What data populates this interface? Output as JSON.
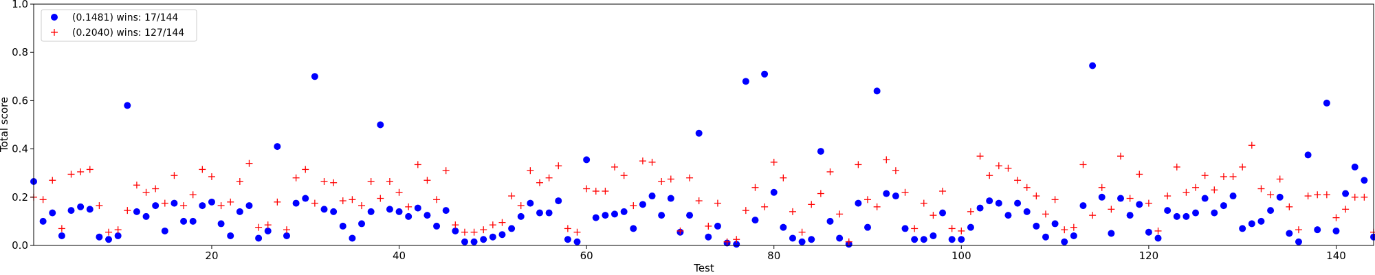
{
  "chart_data": {
    "type": "scatter",
    "xlabel": "Test",
    "ylabel": "Total score",
    "xlim": [
      1,
      144
    ],
    "ylim": [
      0,
      1.0
    ],
    "xticks": [
      20,
      40,
      60,
      80,
      100,
      120,
      140
    ],
    "yticks": [
      0.0,
      0.2,
      0.4,
      0.6,
      0.8,
      1.0
    ],
    "xtick_labels": [
      "20",
      "40",
      "60",
      "80",
      "100",
      "120",
      "140"
    ],
    "ytick_labels": [
      "0.0",
      "0.2",
      "0.4",
      "0.6",
      "0.8",
      "1.0"
    ],
    "grid": false,
    "legend_position": "top-left",
    "series": [
      {
        "name": "(0.1481) wins: 17/144",
        "marker": "circle",
        "color": "#0000ff",
        "values": [
          0.265,
          0.1,
          0.135,
          0.04,
          0.145,
          0.16,
          0.15,
          0.035,
          0.025,
          0.04,
          0.58,
          0.14,
          0.12,
          0.165,
          0.06,
          0.175,
          0.1,
          0.1,
          0.165,
          0.18,
          0.09,
          0.04,
          0.14,
          0.165,
          0.03,
          0.06,
          0.41,
          0.04,
          0.175,
          0.195,
          0.7,
          0.15,
          0.14,
          0.08,
          0.03,
          0.09,
          0.14,
          0.5,
          0.15,
          0.14,
          0.12,
          0.155,
          0.125,
          0.08,
          0.145,
          0.06,
          0.015,
          0.015,
          0.025,
          0.035,
          0.045,
          0.07,
          0.12,
          0.175,
          0.135,
          0.135,
          0.185,
          0.025,
          0.015,
          0.355,
          0.115,
          0.125,
          0.13,
          0.14,
          0.07,
          0.17,
          0.205,
          0.125,
          0.195,
          0.055,
          0.125,
          0.465,
          0.035,
          0.08,
          0.01,
          0.005,
          0.68,
          0.105,
          0.71,
          0.22,
          0.075,
          0.03,
          0.015,
          0.025,
          0.39,
          0.1,
          0.03,
          0.005,
          0.175,
          0.075,
          0.64,
          0.215,
          0.205,
          0.07,
          0.025,
          0.025,
          0.04,
          0.135,
          0.025,
          0.025,
          0.075,
          0.155,
          0.185,
          0.175,
          0.125,
          0.175,
          0.14,
          0.08,
          0.035,
          0.09,
          0.015,
          0.04,
          0.165,
          0.745,
          0.2,
          0.05,
          0.195,
          0.125,
          0.17,
          0.055,
          0.03,
          0.145,
          0.12,
          0.12,
          0.135,
          0.195,
          0.135,
          0.165,
          0.205,
          0.07,
          0.09,
          0.1,
          0.145,
          0.2,
          0.05,
          0.015,
          0.375,
          0.065,
          0.59,
          0.06,
          0.215,
          0.325,
          0.27,
          0.035
        ]
      },
      {
        "name": "(0.2040) wins: 127/144",
        "marker": "plus",
        "color": "#ff0000",
        "values": [
          0.2,
          0.19,
          0.27,
          0.07,
          0.295,
          0.305,
          0.315,
          0.165,
          0.055,
          0.065,
          0.145,
          0.25,
          0.22,
          0.235,
          0.175,
          0.29,
          0.165,
          0.21,
          0.315,
          0.285,
          0.165,
          0.18,
          0.265,
          0.34,
          0.075,
          0.085,
          0.18,
          0.065,
          0.28,
          0.315,
          0.175,
          0.265,
          0.26,
          0.185,
          0.19,
          0.165,
          0.265,
          0.195,
          0.265,
          0.22,
          0.16,
          0.335,
          0.27,
          0.19,
          0.31,
          0.085,
          0.055,
          0.055,
          0.065,
          0.085,
          0.095,
          0.205,
          0.165,
          0.31,
          0.26,
          0.28,
          0.33,
          0.07,
          0.055,
          0.235,
          0.225,
          0.225,
          0.325,
          0.29,
          0.165,
          0.35,
          0.345,
          0.265,
          0.275,
          0.06,
          0.28,
          0.185,
          0.08,
          0.175,
          0.015,
          0.025,
          0.145,
          0.24,
          0.16,
          0.345,
          0.28,
          0.14,
          0.055,
          0.17,
          0.215,
          0.305,
          0.13,
          0.015,
          0.335,
          0.19,
          0.16,
          0.355,
          0.31,
          0.22,
          0.07,
          0.175,
          0.125,
          0.225,
          0.07,
          0.06,
          0.14,
          0.37,
          0.29,
          0.33,
          0.32,
          0.27,
          0.24,
          0.205,
          0.13,
          0.19,
          0.065,
          0.075,
          0.335,
          0.125,
          0.24,
          0.15,
          0.37,
          0.195,
          0.295,
          0.175,
          0.06,
          0.205,
          0.325,
          0.22,
          0.24,
          0.29,
          0.23,
          0.285,
          0.285,
          0.325,
          0.415,
          0.235,
          0.21,
          0.275,
          0.16,
          0.065,
          0.205,
          0.21,
          0.21,
          0.115,
          0.15,
          0.2,
          0.2,
          0.055
        ]
      }
    ]
  }
}
